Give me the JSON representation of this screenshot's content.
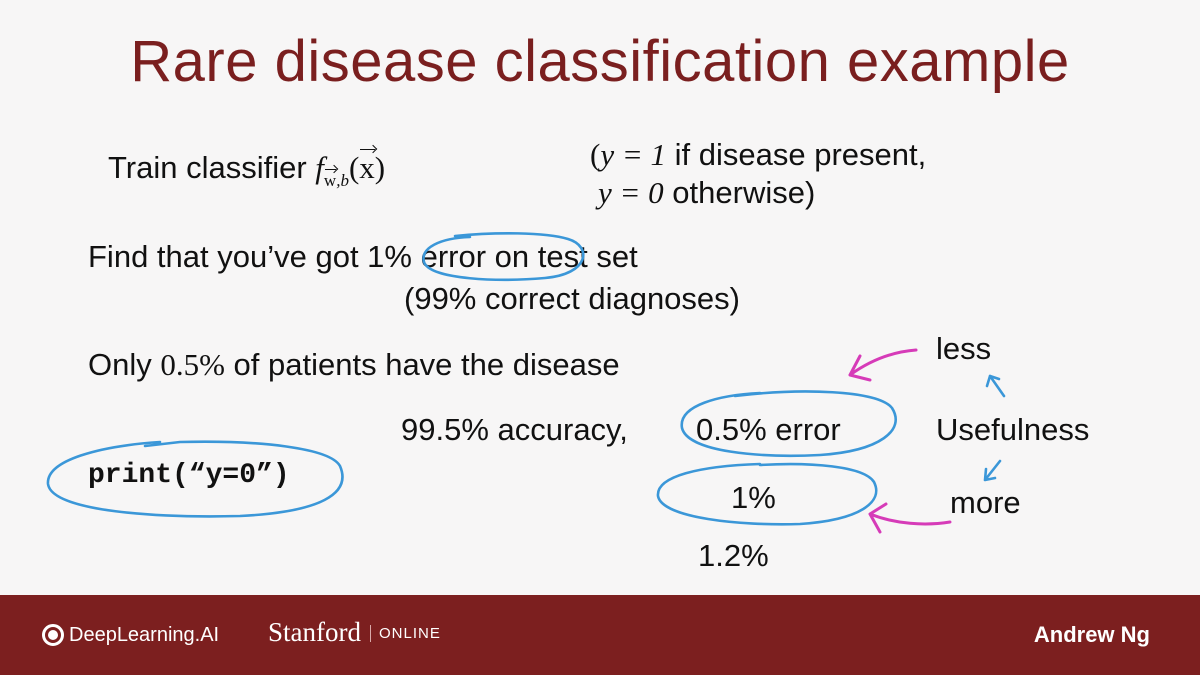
{
  "title": "Rare disease classification example",
  "line1": {
    "prefix": "Train classifier ",
    "f": "f",
    "w": "w",
    "comma_b": ",b",
    "open_paren": "(",
    "x": "x",
    "close_paren": ")"
  },
  "label_def": {
    "open_paren": "(",
    "y1": "y = 1",
    "text1": " if disease present,",
    "y0": "y = 0",
    "text2": " otherwise)"
  },
  "line2": {
    "prefix": "Find that you’ve got ",
    "error": "1% error",
    "suffix": " on test set"
  },
  "line3": "(99% correct diagnoses)",
  "line4": {
    "prefix": "Only ",
    "pct": "0.5%",
    "suffix": " of patients have the disease"
  },
  "accuracy_line": {
    "accuracy": "99.5% accuracy,",
    "error": "0.5% error"
  },
  "print_code": "print(“y=0”)",
  "option_1pct": "1%",
  "option_12pct": "1.2%",
  "usefulness": {
    "less": "less",
    "label": "Usefulness",
    "more": "more"
  },
  "footer": {
    "deeplearning": "DeepLearning.AI",
    "stanford": "Stanford",
    "online": "ONLINE",
    "author": "Andrew Ng"
  },
  "colors": {
    "title": "#7a1f1f",
    "footer_bg": "#7c1f1f",
    "blue_ink": "#3b97d8",
    "magenta_ink": "#d63bb8"
  }
}
